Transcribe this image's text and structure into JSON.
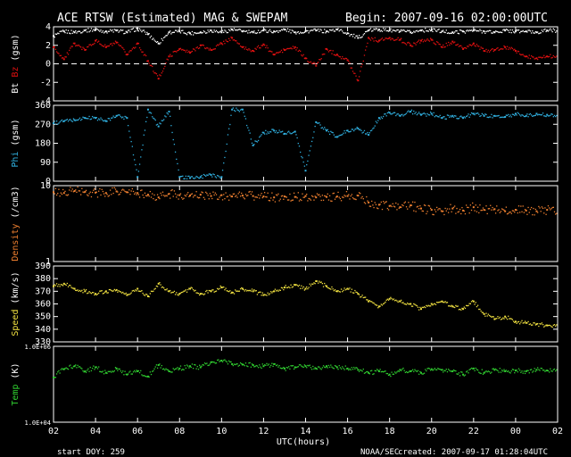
{
  "header": {
    "title": "ACE RTSW (Estimated) MAG & SWEPAM",
    "begin": "Begin: 2007-09-16 02:00:00UTC"
  },
  "footer": {
    "start_doy": "start DOY: 259",
    "agency": "NOAA/SEC",
    "created": "created: 2007-09-17 01:28:04UTC"
  },
  "colors": {
    "bt": "#ffffff",
    "bz": "#e01010",
    "phi": "#30b0e0",
    "density": "#f08030",
    "speed": "#f0e040",
    "temp": "#30d030"
  },
  "chart_data": [
    {
      "type": "scatter",
      "panel": "mag",
      "ylabel_parts": [
        "Bt",
        "Bz",
        "(gsm)"
      ],
      "ylim": [
        -4,
        4
      ],
      "yticks": [
        "4",
        "2",
        "0",
        "-2",
        "-4"
      ],
      "reference_line": 0,
      "series": [
        {
          "name": "Bt",
          "x": [
            2,
            2.5,
            3,
            3.5,
            4,
            4.5,
            5,
            5.5,
            6,
            6.5,
            7,
            7.5,
            8,
            8.5,
            9,
            9.5,
            10,
            10.5,
            11,
            11.5,
            12,
            12.5,
            13,
            13.5,
            14,
            14.5,
            15,
            15.5,
            16,
            16.5,
            17,
            17.5,
            18,
            18.5,
            19,
            19.5,
            20,
            20.5,
            21,
            21.5,
            22,
            22.5,
            23,
            23.5,
            24,
            24.5,
            25,
            25.5
          ],
          "y": [
            3,
            3.5,
            3.4,
            3.6,
            3.7,
            3.5,
            3.6,
            3.4,
            3.8,
            3.2,
            2.2,
            3.4,
            3.5,
            3.3,
            3.4,
            3.6,
            3.4,
            3.7,
            3.5,
            3.4,
            3.6,
            3.5,
            3.7,
            3.4,
            3.5,
            3.6,
            3.5,
            3.7,
            3.3,
            2.8,
            3.6,
            3.7,
            3.6,
            3.5,
            3.4,
            3.6,
            3.7,
            3.5,
            3.4,
            3.5,
            3.6,
            3.5,
            3.4,
            3.6,
            3.5,
            3.5,
            3.4,
            3.6
          ]
        },
        {
          "name": "Bz",
          "x": [
            2,
            2.5,
            3,
            3.5,
            4,
            4.5,
            5,
            5.5,
            6,
            6.5,
            7,
            7.5,
            8,
            8.5,
            9,
            9.5,
            10,
            10.5,
            11,
            11.5,
            12,
            12.5,
            13,
            13.5,
            14,
            14.5,
            15,
            15.5,
            16,
            16.5,
            17,
            17.5,
            18,
            18.5,
            19,
            19.5,
            20,
            20.5,
            21,
            21.5,
            22,
            22.5,
            23,
            23.5,
            24,
            24.5,
            25,
            25.5
          ],
          "y": [
            1.8,
            0.5,
            2.2,
            1.5,
            2.5,
            1.8,
            2.3,
            1.0,
            2.2,
            0.3,
            -1.6,
            0.8,
            1.6,
            1.2,
            2.0,
            1.5,
            2.2,
            2.8,
            1.8,
            1.4,
            2.1,
            1.0,
            1.5,
            1.8,
            0.6,
            -0.2,
            1.6,
            1.0,
            0.4,
            -1.8,
            2.8,
            2.5,
            2.8,
            2.6,
            2.0,
            2.5,
            2.6,
            1.8,
            2.4,
            1.6,
            2.2,
            1.4,
            1.5,
            1.8,
            1.4,
            0.8,
            0.6,
            0.8
          ]
        }
      ]
    },
    {
      "type": "scatter",
      "panel": "phi",
      "ylabel_parts": [
        "Phi",
        "(gsm)"
      ],
      "ylim": [
        0,
        360
      ],
      "yticks": [
        "360",
        "270",
        "180",
        "90",
        "0"
      ],
      "series": [
        {
          "name": "Phi",
          "x": [
            2,
            2.5,
            3,
            3.5,
            4,
            4.5,
            5,
            5.5,
            6,
            6.5,
            7,
            7.5,
            8,
            8.5,
            9,
            9.5,
            10,
            10.5,
            11,
            11.5,
            12,
            12.5,
            13,
            13.5,
            14,
            14.5,
            15,
            15.5,
            16,
            16.5,
            17,
            17.5,
            18,
            18.5,
            19,
            19.5,
            20,
            20.5,
            21,
            21.5,
            22,
            22.5,
            23,
            23.5,
            24,
            24.5,
            25,
            25.5
          ],
          "y": [
            275,
            285,
            290,
            300,
            300,
            285,
            310,
            300,
            20,
            340,
            260,
            330,
            20,
            15,
            20,
            30,
            20,
            340,
            340,
            170,
            230,
            240,
            225,
            235,
            50,
            280,
            240,
            210,
            240,
            250,
            220,
            300,
            325,
            310,
            330,
            315,
            320,
            300,
            310,
            300,
            320,
            310,
            310,
            305,
            320,
            310,
            320,
            315
          ]
        }
      ]
    },
    {
      "type": "scatter",
      "panel": "density",
      "ylabel_parts": [
        "Density",
        "(/cm3)"
      ],
      "yscale": "log",
      "ylim": [
        1,
        10
      ],
      "yticks": [
        "10",
        "1"
      ],
      "series": [
        {
          "name": "Density",
          "x": [
            2,
            2.5,
            3,
            3.5,
            4,
            4.5,
            5,
            5.5,
            6,
            6.5,
            7,
            7.5,
            8,
            8.5,
            9,
            9.5,
            10,
            10.5,
            11,
            11.5,
            12,
            12.5,
            13,
            13.5,
            14,
            14.5,
            15,
            15.5,
            16,
            16.5,
            17,
            17.5,
            18,
            18.5,
            19,
            19.5,
            20,
            20.5,
            21,
            21.5,
            22,
            22.5,
            23,
            23.5,
            24,
            24.5,
            25,
            25.5
          ],
          "y": [
            8.2,
            8.0,
            8.5,
            8.3,
            8.1,
            8.0,
            8.4,
            8.2,
            8.0,
            7.6,
            7.0,
            7.8,
            7.5,
            7.4,
            7.6,
            7.3,
            7.5,
            7.2,
            7.4,
            7.3,
            7.2,
            7.0,
            7.2,
            7.1,
            7.3,
            7.0,
            7.1,
            7.2,
            7.3,
            7.4,
            6.0,
            5.6,
            5.4,
            5.2,
            5.5,
            5.0,
            4.8,
            4.6,
            5.0,
            4.7,
            5.2,
            4.8,
            4.9,
            4.6,
            4.8,
            4.7,
            4.6,
            4.8
          ]
        }
      ]
    },
    {
      "type": "scatter",
      "panel": "speed",
      "ylabel_parts": [
        "Speed",
        "(km/s)"
      ],
      "ylim": [
        330,
        390
      ],
      "yticks": [
        "390",
        "380",
        "370",
        "360",
        "350",
        "340",
        "330"
      ],
      "series": [
        {
          "name": "Speed",
          "x": [
            2,
            2.5,
            3,
            3.5,
            4,
            4.5,
            5,
            5.5,
            6,
            6.5,
            7,
            7.5,
            8,
            8.5,
            9,
            9.5,
            10,
            10.5,
            11,
            11.5,
            12,
            12.5,
            13,
            13.5,
            14,
            14.5,
            15,
            15.5,
            16,
            16.5,
            17,
            17.5,
            18,
            18.5,
            19,
            19.5,
            20,
            20.5,
            21,
            21.5,
            22,
            22.5,
            23,
            23.5,
            24,
            24.5,
            25,
            25.5
          ],
          "y": [
            374,
            376,
            372,
            370,
            368,
            370,
            371,
            367,
            372,
            366,
            376,
            370,
            368,
            372,
            368,
            370,
            373,
            369,
            372,
            370,
            367,
            370,
            373,
            375,
            372,
            378,
            374,
            370,
            372,
            368,
            362,
            358,
            364,
            362,
            360,
            356,
            360,
            362,
            358,
            356,
            362,
            352,
            348,
            350,
            346,
            345,
            344,
            343
          ]
        }
      ]
    },
    {
      "type": "scatter",
      "panel": "temp",
      "ylabel_parts": [
        "Temp",
        "(K)"
      ],
      "yscale": "log",
      "ylim": [
        10000,
        1000000
      ],
      "yticks": [
        "1.0E+06",
        "1.0E+04"
      ],
      "xlabel": "UTC(hours)",
      "xlim": [
        2,
        26
      ],
      "xticks": [
        "02",
        "04",
        "06",
        "08",
        "10",
        "12",
        "14",
        "16",
        "18",
        "20",
        "22",
        "00",
        "02"
      ],
      "series": [
        {
          "name": "Temp",
          "x": [
            2,
            2.5,
            3,
            3.5,
            4,
            4.5,
            5,
            5.5,
            6,
            6.5,
            7,
            7.5,
            8,
            8.5,
            9,
            9.5,
            10,
            10.5,
            11,
            11.5,
            12,
            12.5,
            13,
            13.5,
            14,
            14.5,
            15,
            15.5,
            16,
            16.5,
            17,
            17.5,
            18,
            18.5,
            19,
            19.5,
            20,
            20.5,
            21,
            21.5,
            22,
            22.5,
            23,
            23.5,
            24,
            24.5,
            25,
            25.5
          ],
          "y": [
            150000,
            250000,
            300000,
            220000,
            280000,
            200000,
            260000,
            180000,
            220000,
            160000,
            320000,
            220000,
            260000,
            300000,
            280000,
            380000,
            420000,
            340000,
            330000,
            320000,
            300000,
            340000,
            260000,
            280000,
            300000,
            260000,
            300000,
            280000,
            260000,
            240000,
            200000,
            220000,
            180000,
            240000,
            220000,
            200000,
            250000,
            240000,
            220000,
            180000,
            260000,
            200000,
            240000,
            220000,
            230000,
            220000,
            240000,
            230000
          ]
        }
      ]
    }
  ]
}
